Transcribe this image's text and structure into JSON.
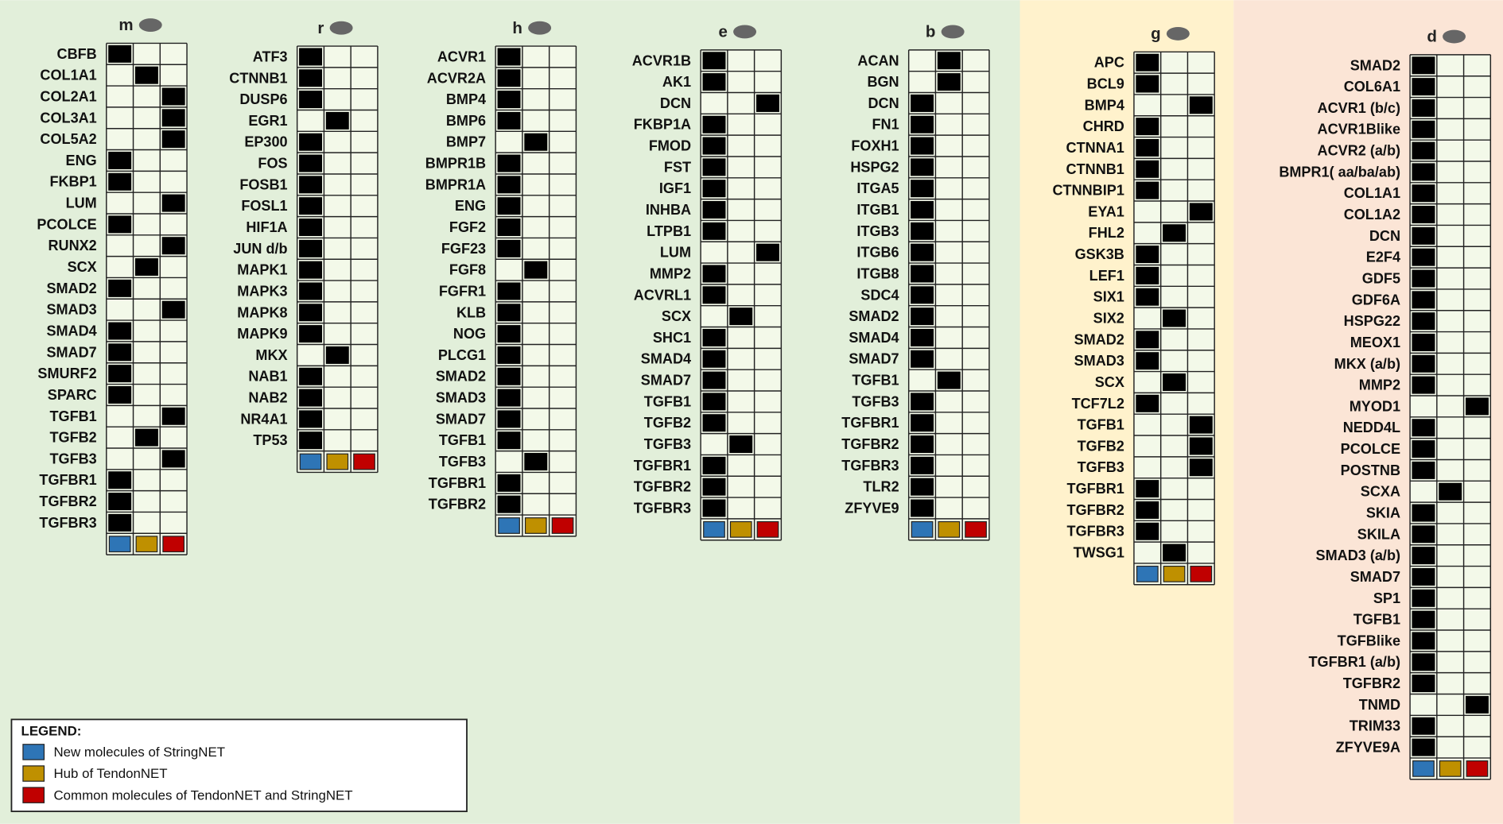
{
  "panels": [
    {
      "label": "m",
      "genes": [
        {
          "name": "CBFB",
          "column": 0
        },
        {
          "name": "COL1A1",
          "column": 1
        },
        {
          "name": "COL2A1",
          "column": 2
        },
        {
          "name": "COL3A1",
          "column": 2
        },
        {
          "name": "COL5A2",
          "column": 2
        },
        {
          "name": "ENG",
          "column": 0
        },
        {
          "name": "FKBP1",
          "column": 0
        },
        {
          "name": "LUM",
          "column": 2
        },
        {
          "name": "PCOLCE",
          "column": 0
        },
        {
          "name": "RUNX2",
          "column": 2
        },
        {
          "name": "SCX",
          "column": 1
        },
        {
          "name": "SMAD2",
          "column": 0
        },
        {
          "name": "SMAD3",
          "column": 2
        },
        {
          "name": "SMAD4",
          "column": 0
        },
        {
          "name": "SMAD7",
          "column": 0
        },
        {
          "name": "SMURF2",
          "column": 0
        },
        {
          "name": "SPARC",
          "column": 0
        },
        {
          "name": "TGFB1",
          "column": 2
        },
        {
          "name": "TGFB2",
          "column": 1
        },
        {
          "name": "TGFB3",
          "column": 2
        },
        {
          "name": "TGFBR1",
          "column": 0
        },
        {
          "name": "TGFBR2",
          "column": 0
        },
        {
          "name": "TGFBR3",
          "column": 0
        }
      ]
    },
    {
      "label": "r",
      "genes": [
        {
          "name": "ATF3",
          "column": 0
        },
        {
          "name": "CTNNB1",
          "column": 0
        },
        {
          "name": "DUSP6",
          "column": 0
        },
        {
          "name": "EGR1",
          "column": 1
        },
        {
          "name": "EP300",
          "column": 0
        },
        {
          "name": "FOS",
          "column": 0
        },
        {
          "name": "FOSB1",
          "column": 0
        },
        {
          "name": "FOSL1",
          "column": 0
        },
        {
          "name": "HIF1A",
          "column": 0
        },
        {
          "name": "JUN d/b",
          "column": 0
        },
        {
          "name": "MAPK1",
          "column": 0
        },
        {
          "name": "MAPK3",
          "column": 0
        },
        {
          "name": "MAPK8",
          "column": 0
        },
        {
          "name": "MAPK9",
          "column": 0
        },
        {
          "name": "MKX",
          "column": 1
        },
        {
          "name": "NAB1",
          "column": 0
        },
        {
          "name": "NAB2",
          "column": 0
        },
        {
          "name": "NR4A1",
          "column": 0
        },
        {
          "name": "TP53",
          "column": 0
        }
      ]
    },
    {
      "label": "h",
      "genes": [
        {
          "name": "ACVR1",
          "column": 0
        },
        {
          "name": "ACVR2A",
          "column": 0
        },
        {
          "name": "BMP4",
          "column": 0
        },
        {
          "name": "BMP6",
          "column": 0
        },
        {
          "name": "BMP7",
          "column": 1
        },
        {
          "name": "BMPR1B",
          "column": 0
        },
        {
          "name": "BMPR1A",
          "column": 0
        },
        {
          "name": "ENG",
          "column": 0
        },
        {
          "name": "FGF2",
          "column": 0
        },
        {
          "name": "FGF23",
          "column": 0
        },
        {
          "name": "FGF8",
          "column": 1
        },
        {
          "name": "FGFR1",
          "column": 0
        },
        {
          "name": "KLB",
          "column": 0
        },
        {
          "name": "NOG",
          "column": 0
        },
        {
          "name": "PLCG1",
          "column": 0
        },
        {
          "name": "SMAD2",
          "column": 0
        },
        {
          "name": "SMAD3",
          "column": 0
        },
        {
          "name": "SMAD7",
          "column": 0
        },
        {
          "name": "TGFB1",
          "column": 0
        },
        {
          "name": "TGFB3",
          "column": 1
        },
        {
          "name": "TGFBR1",
          "column": 0
        },
        {
          "name": "TGFBR2",
          "column": 0
        }
      ]
    },
    {
      "label": "e",
      "genes": [
        {
          "name": "ACVR1B",
          "column": 0
        },
        {
          "name": "AK1",
          "column": 0
        },
        {
          "name": "DCN",
          "column": 2
        },
        {
          "name": "FKBP1A",
          "column": 0
        },
        {
          "name": "FMOD",
          "column": 0
        },
        {
          "name": "FST",
          "column": 0
        },
        {
          "name": "IGF1",
          "column": 0
        },
        {
          "name": "INHBA",
          "column": 0
        },
        {
          "name": "LTPB1",
          "column": 0
        },
        {
          "name": "LUM",
          "column": 2
        },
        {
          "name": "MMP2",
          "column": 0
        },
        {
          "name": "ACVRL1",
          "column": 0
        },
        {
          "name": "SCX",
          "column": 1
        },
        {
          "name": "SHC1",
          "column": 0
        },
        {
          "name": "SMAD4",
          "column": 0
        },
        {
          "name": "SMAD7",
          "column": 0
        },
        {
          "name": "TGFB1",
          "column": 0
        },
        {
          "name": "TGFB2",
          "column": 0
        },
        {
          "name": "TGFB3",
          "column": 1
        },
        {
          "name": "TGFBR1",
          "column": 0
        },
        {
          "name": "TGFBR2",
          "column": 0
        },
        {
          "name": "TGFBR3",
          "column": 0
        }
      ]
    },
    {
      "label": "b",
      "genes": [
        {
          "name": "ACAN",
          "column": 1
        },
        {
          "name": "BGN",
          "column": 1
        },
        {
          "name": "DCN",
          "column": 0
        },
        {
          "name": "FN1",
          "column": 0
        },
        {
          "name": "FOXH1",
          "column": 0
        },
        {
          "name": "HSPG2",
          "column": 0
        },
        {
          "name": "ITGA5",
          "column": 0
        },
        {
          "name": "ITGB1",
          "column": 0
        },
        {
          "name": "ITGB3",
          "column": 0
        },
        {
          "name": "ITGB6",
          "column": 0
        },
        {
          "name": "ITGB8",
          "column": 0
        },
        {
          "name": "SDC4",
          "column": 0
        },
        {
          "name": "SMAD2",
          "column": 0
        },
        {
          "name": "SMAD4",
          "column": 0
        },
        {
          "name": "SMAD7",
          "column": 0
        },
        {
          "name": "TGFB1",
          "column": 1
        },
        {
          "name": "TGFB3",
          "column": 0
        },
        {
          "name": "TGFBR1",
          "column": 0
        },
        {
          "name": "TGFBR2",
          "column": 0
        },
        {
          "name": "TGFBR3",
          "column": 0
        },
        {
          "name": "TLR2",
          "column": 0
        },
        {
          "name": "ZFYVE9",
          "column": 0
        }
      ]
    },
    {
      "label": "g",
      "genes": [
        {
          "name": "APC",
          "column": 0
        },
        {
          "name": "BCL9",
          "column": 0
        },
        {
          "name": "BMP4",
          "column": 2
        },
        {
          "name": "CHRD",
          "column": 0
        },
        {
          "name": "CTNNA1",
          "column": 0
        },
        {
          "name": "CTNNB1",
          "column": 0
        },
        {
          "name": "CTNNBIP1",
          "column": 0
        },
        {
          "name": "EYA1",
          "column": 2
        },
        {
          "name": "FHL2",
          "column": 1
        },
        {
          "name": "GSK3B",
          "column": 0
        },
        {
          "name": "LEF1",
          "column": 0
        },
        {
          "name": "SIX1",
          "column": 0
        },
        {
          "name": "SIX2",
          "column": 1
        },
        {
          "name": "SMAD2",
          "column": 0
        },
        {
          "name": "SMAD3",
          "column": 0
        },
        {
          "name": "SCX",
          "column": 1
        },
        {
          "name": "TCF7L2",
          "column": 0
        },
        {
          "name": "TGFB1",
          "column": 2
        },
        {
          "name": "TGFB2",
          "column": 2
        },
        {
          "name": "TGFB3",
          "column": 2
        },
        {
          "name": "TGFBR1",
          "column": 0
        },
        {
          "name": "TGFBR2",
          "column": 0
        },
        {
          "name": "TGFBR3",
          "column": 0
        },
        {
          "name": "TWSG1",
          "column": 1
        }
      ]
    },
    {
      "label": "d",
      "genes": [
        {
          "name": "SMAD2",
          "column": 0
        },
        {
          "name": "COL6A1",
          "column": 0
        },
        {
          "name": "ACVR1 (b/c)",
          "column": 0
        },
        {
          "name": "ACVR1Blike",
          "column": 0
        },
        {
          "name": "ACVR2 (a/b)",
          "column": 0
        },
        {
          "name": "BMPR1( aa/ba/ab)",
          "column": 0
        },
        {
          "name": "COL1A1",
          "column": 0
        },
        {
          "name": "COL1A2",
          "column": 0
        },
        {
          "name": "DCN",
          "column": 0
        },
        {
          "name": "E2F4",
          "column": 0
        },
        {
          "name": "GDF5",
          "column": 0
        },
        {
          "name": "GDF6A",
          "column": 0
        },
        {
          "name": "HSPG22",
          "column": 0
        },
        {
          "name": "MEOX1",
          "column": 0
        },
        {
          "name": "MKX (a/b)",
          "column": 0
        },
        {
          "name": "MMP2",
          "column": 0
        },
        {
          "name": "MYOD1",
          "column": 2
        },
        {
          "name": "NEDD4L",
          "column": 0
        },
        {
          "name": "PCOLCE",
          "column": 0
        },
        {
          "name": "POSTNB",
          "column": 0
        },
        {
          "name": "SCXA",
          "column": 1
        },
        {
          "name": "SKIA",
          "column": 0
        },
        {
          "name": "SKILA",
          "column": 0
        },
        {
          "name": "SMAD3 (a/b)",
          "column": 0
        },
        {
          "name": "SMAD7",
          "column": 0
        },
        {
          "name": "SP1",
          "column": 0
        },
        {
          "name": "TGFB1",
          "column": 0
        },
        {
          "name": "TGFBlike",
          "column": 0
        },
        {
          "name": "TGFBR1 (a/b)",
          "column": 0
        },
        {
          "name": "TGFBR2",
          "column": 0
        },
        {
          "name": "TNMD",
          "column": 2
        },
        {
          "name": "TRIM33",
          "column": 0
        },
        {
          "name": "ZFYVE9A",
          "column": 0
        }
      ]
    }
  ],
  "legend": {
    "title": "LEGEND:",
    "items": [
      {
        "label": "New molecules of StringNET",
        "color": "#2e75b6"
      },
      {
        "label": "Hub of TendonNET",
        "color": "#bf9000"
      },
      {
        "label": "Common molecules of TendonNET and StringNET",
        "color": "#c00000"
      }
    ]
  }
}
